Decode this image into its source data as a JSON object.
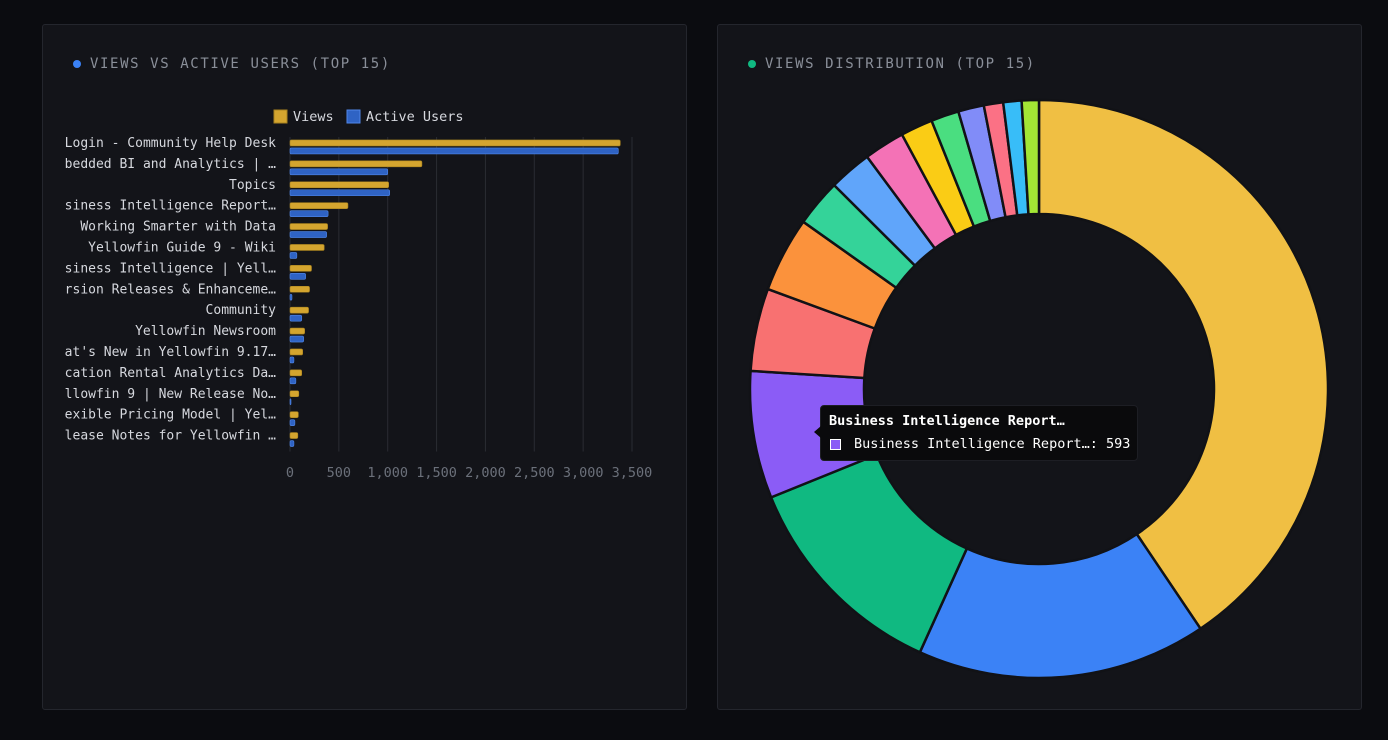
{
  "colors": {
    "views": "#d4a52f",
    "active_users": "#2f63c4",
    "left_dot": "#3b82f6",
    "right_dot": "#10b981"
  },
  "left_panel": {
    "title": "VIEWS VS ACTIVE USERS (TOP 15)"
  },
  "right_panel": {
    "title": "VIEWS DISTRIBUTION (TOP 15)"
  },
  "tooltip": {
    "title": "Business Intelligence Report…",
    "row": "Business Intelligence Report…: 593",
    "color": "#8b5cf6"
  },
  "chart_data": [
    {
      "type": "bar",
      "orientation": "horizontal",
      "categories": [
        "Login - Community Help Desk",
        "bedded BI and Analytics | …",
        "Topics",
        "siness Intelligence Report…",
        "Working Smarter with Data",
        "Yellowfin Guide 9 - Wiki",
        "siness Intelligence | Yell…",
        "rsion Releases & Enhanceme…",
        "Community",
        "Yellowfin Newsroom",
        "at's New in Yellowfin 9.17…",
        "cation Rental Analytics Da…",
        "llowfin 9 | New Release No…",
        "exible Pricing Model | Yel…",
        "lease Notes for Yellowfin …"
      ],
      "series": [
        {
          "name": "Views",
          "values": [
            3380,
            1350,
            1010,
            593,
            385,
            350,
            220,
            200,
            190,
            150,
            130,
            120,
            90,
            85,
            80
          ]
        },
        {
          "name": "Active Users",
          "values": [
            3360,
            1000,
            1020,
            390,
            375,
            70,
            160,
            20,
            120,
            140,
            40,
            60,
            10,
            50,
            40
          ]
        }
      ],
      "xlim": [
        0,
        3500
      ],
      "x_ticks": [
        "0",
        "500",
        "1,000",
        "1,500",
        "2,000",
        "2,500",
        "3,000",
        "3,500"
      ],
      "grid": true,
      "legend": "top-center"
    },
    {
      "type": "pie",
      "variant": "donut",
      "values": [
        3380,
        1350,
        1010,
        593,
        385,
        350,
        220,
        200,
        190,
        150,
        130,
        120,
        90,
        85,
        80
      ],
      "colors": [
        "#f0bf43",
        "#3b82f6",
        "#10b981",
        "#8b5cf6",
        "#f87171",
        "#fb923c",
        "#34d399",
        "#60a5fa",
        "#f472b6",
        "#facc15",
        "#4ade80",
        "#818cf8",
        "#fb7185",
        "#38bdf8",
        "#a3e635"
      ]
    }
  ]
}
